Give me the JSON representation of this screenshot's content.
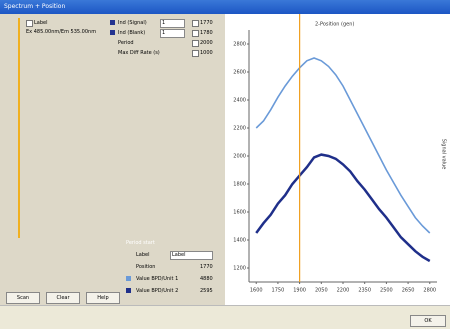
{
  "window": {
    "title": "Spectrum + Position",
    "ok": "OK"
  },
  "panel": {
    "list": [
      "Label",
      "Ex 485.00nm/Em 535.00nm"
    ],
    "options": [
      {
        "label": "Ind (Signal)",
        "select": "1",
        "value": "1770"
      },
      {
        "label": "Ind (Blank)",
        "select": "1",
        "value": "1780"
      },
      {
        "label": "Period",
        "value": "2000"
      },
      {
        "label": "Max Diff Rate (s)",
        "value": "1000"
      }
    ],
    "group": {
      "title": "Period start",
      "label_caption": "Label",
      "label_select": "Label",
      "rows": [
        {
          "label": "Position",
          "value": "1770"
        },
        {
          "label": "Value BPD/Unit 1",
          "value": "4880"
        },
        {
          "label": "Value BPD/Unit 2",
          "value": "2595"
        }
      ]
    },
    "buttons": [
      "Scan",
      "Clear",
      "Help"
    ]
  },
  "chart_data": {
    "type": "line",
    "title": "2-Position (gen)",
    "y_label": "Signal value",
    "x": [
      1600,
      1650,
      1700,
      1750,
      1800,
      1850,
      1900,
      1950,
      2000,
      2050,
      2100,
      2150,
      2200,
      2250,
      2300,
      2350,
      2400,
      2450,
      2500,
      2550,
      2600,
      2650,
      2700,
      2750,
      2800
    ],
    "series": [
      {
        "name": "Unit 1",
        "color": "#6a9ad8",
        "values": [
          2200,
          2250,
          2330,
          2420,
          2500,
          2570,
          2630,
          2680,
          2700,
          2680,
          2640,
          2580,
          2500,
          2400,
          2300,
          2200,
          2100,
          2000,
          1900,
          1810,
          1720,
          1640,
          1560,
          1500,
          1450
        ]
      },
      {
        "name": "Unit 2",
        "color": "#1f2f8a",
        "values": [
          1450,
          1520,
          1580,
          1660,
          1720,
          1800,
          1860,
          1920,
          1990,
          2010,
          2000,
          1980,
          1940,
          1890,
          1820,
          1760,
          1690,
          1620,
          1560,
          1490,
          1420,
          1370,
          1320,
          1280,
          1250
        ]
      }
    ],
    "marker": {
      "x": 1900,
      "color": "#f0a020"
    },
    "xlim": [
      1550,
      2850
    ],
    "xticks": [
      1600,
      1750,
      1900,
      2050,
      2200,
      2350,
      2500,
      2650,
      2800
    ],
    "ylim": [
      1100,
      2900
    ],
    "yticks": [
      1200,
      1400,
      1600,
      1800,
      2000,
      2200,
      2400,
      2600,
      2800
    ]
  }
}
